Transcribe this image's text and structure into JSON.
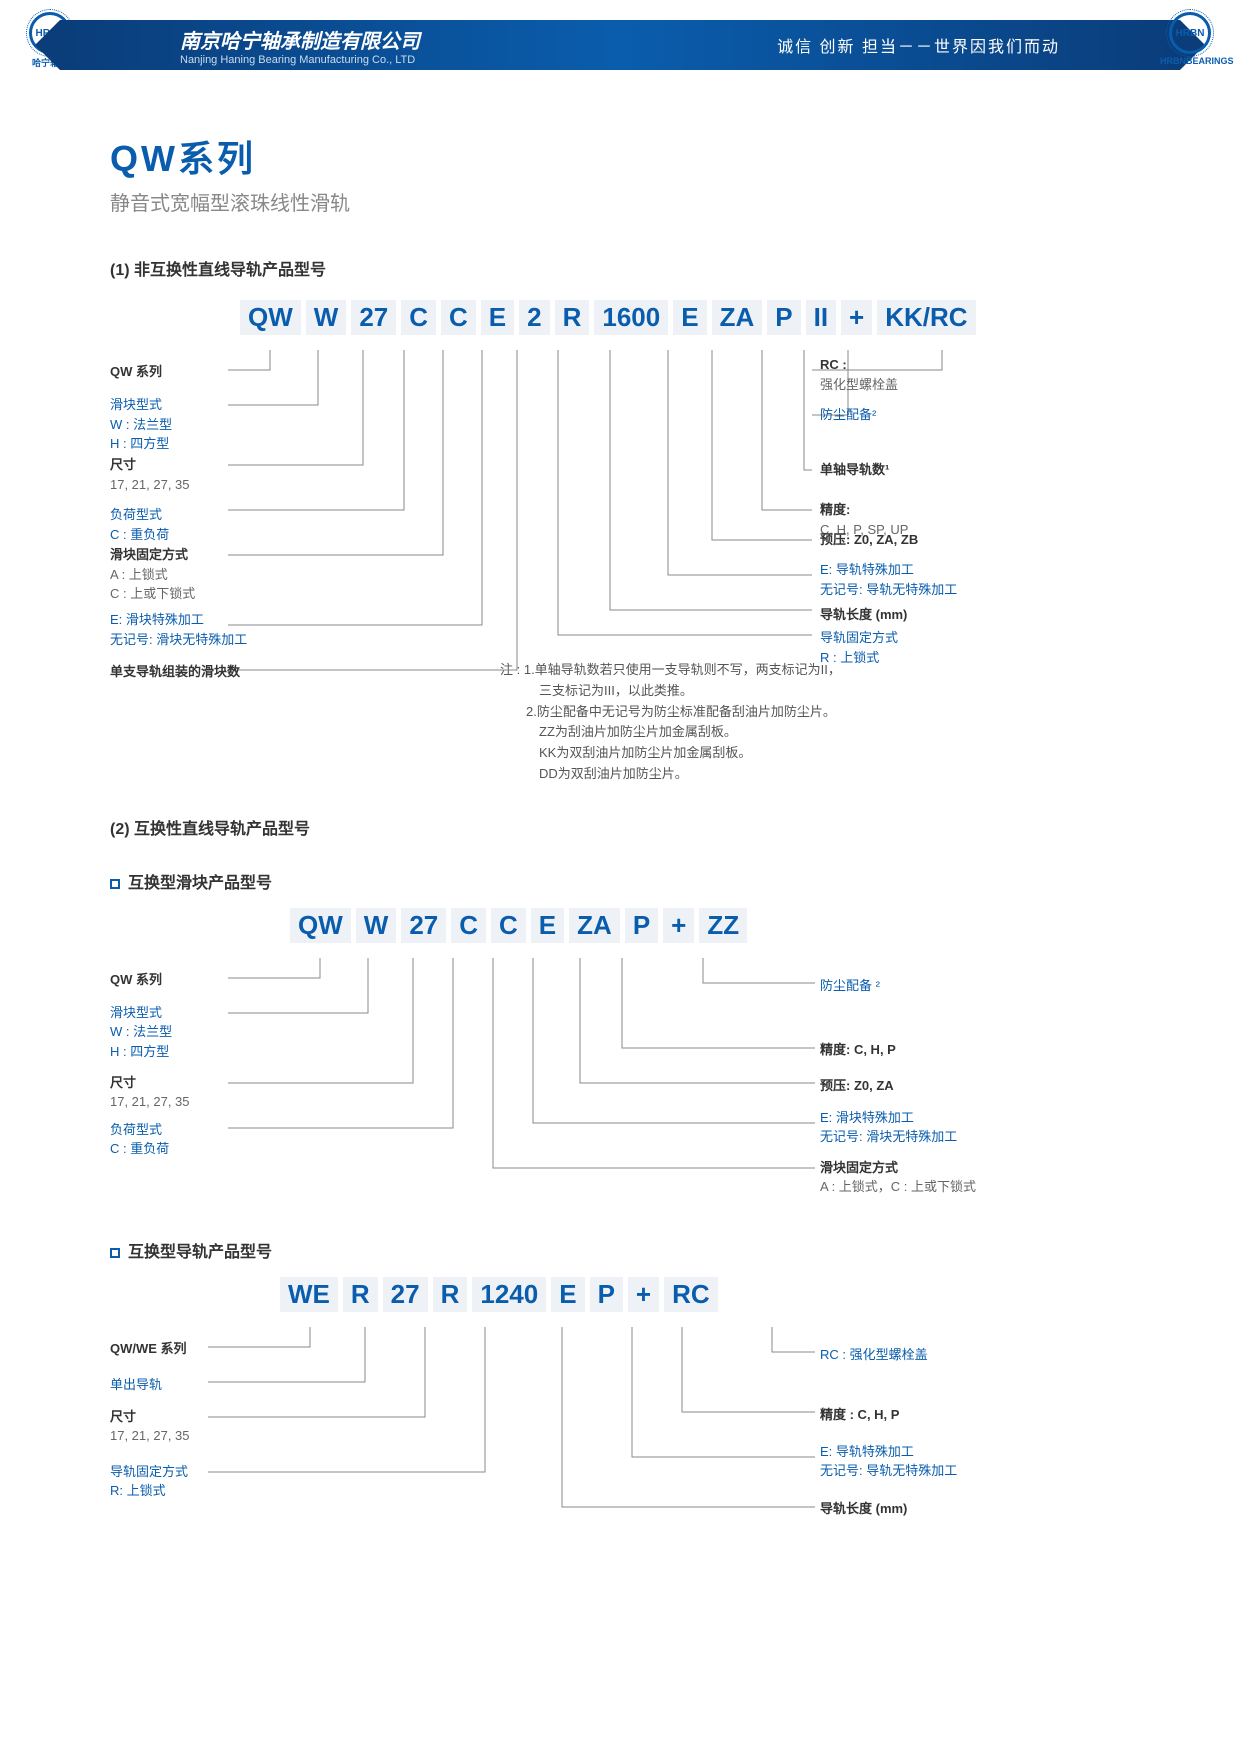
{
  "header": {
    "logo": "HRBN",
    "logo_sub_l": "哈宁轴承",
    "logo_sub_r": "HRBNBEARINGS",
    "company_cn": "南京哈宁轴承制造有限公司",
    "company_en": "Nanjing Haning Bearing Manufacturing Co., LTD",
    "slogan": "诚信 创新 担当－－世界因我们而动"
  },
  "title": "QW系列",
  "subtitle": "静音式宽幅型滚珠线性滑轨",
  "s1": {
    "heading": "(1) 非互换性直线导轨产品型号",
    "codes": [
      "QW",
      "W",
      "27",
      "C",
      "C",
      "E",
      "2",
      "R",
      "1600",
      "E",
      "ZA",
      "P",
      "II",
      "+",
      "KK/RC"
    ],
    "left": [
      {
        "t": "QW 系列"
      },
      {
        "b": "滑块型式\nW : 法兰型\nH : 四方型"
      },
      {
        "t": "尺寸",
        "g": "17, 21, 27, 35"
      },
      {
        "b": "负荷型式\nC : 重负荷"
      },
      {
        "t": "滑块固定方式",
        "g": "A : 上锁式\nC : 上或下锁式"
      },
      {
        "b": "E: 滑块特殊加工\n无记号: 滑块无特殊加工"
      },
      {
        "t": "单支导轨组装的滑块数"
      }
    ],
    "right": [
      {
        "t": "RC :",
        "g": "强化型螺栓盖"
      },
      {
        "b": "防尘配备²"
      },
      {
        "t": "单轴导轨数¹"
      },
      {
        "t": "精度:",
        "g": "C, H, P, SP, UP"
      },
      {
        "t": "预压: Z0, ZA, ZB"
      },
      {
        "b": "E: 导轨特殊加工\n无记号: 导轨无特殊加工"
      },
      {
        "t": "导轨长度 (mm)"
      },
      {
        "b": "导轨固定方式\nR : 上锁式"
      }
    ],
    "notes": "注 : 1.单轴导轨数若只使用一支导轨则不写，两支标记为II，\n　　　三支标记为III，以此类推。\n　　2.防尘配备中无记号为防尘标准配备刮油片加防尘片。\n　　　ZZ为刮油片加防尘片加金属刮板。\n　　　KK为双刮油片加防尘片加金属刮板。\n　　　DD为双刮油片加防尘片。"
  },
  "s2": {
    "heading": "(2) 互换性直线导轨产品型号",
    "sub1": "互换型滑块产品型号",
    "codes1": [
      "QW",
      "W",
      "27",
      "C",
      "C",
      "E",
      "ZA",
      "P",
      "+",
      "ZZ"
    ],
    "l1": [
      {
        "t": "QW 系列"
      },
      {
        "b": "滑块型式\nW : 法兰型\nH : 四方型"
      },
      {
        "t": "尺寸",
        "g": "17, 21, 27, 35"
      },
      {
        "b": "负荷型式\nC : 重负荷"
      }
    ],
    "r1": [
      {
        "b": "防尘配备 ²"
      },
      {
        "t": "精度:  C, H, P"
      },
      {
        "t": "预压:  Z0, ZA"
      },
      {
        "b": "E: 滑块特殊加工\n无记号: 滑块无特殊加工"
      },
      {
        "t": "滑块固定方式",
        "g": "A : 上锁式，C : 上或下锁式"
      }
    ],
    "sub2": "互换型导轨产品型号",
    "codes2": [
      "WE",
      "R",
      "27",
      "R",
      "1240",
      "E",
      "P",
      "+",
      "RC"
    ],
    "l2": [
      {
        "t": "QW/WE 系列"
      },
      {
        "b": "单出导轨"
      },
      {
        "t": "尺寸",
        "g": "17, 21, 27, 35"
      },
      {
        "b": "导轨固定方式\nR: 上锁式"
      }
    ],
    "r2": [
      {
        "b": "RC : 强化型螺栓盖"
      },
      {
        "t": "精度 : C, H, P"
      },
      {
        "b": "E: 导轨特殊加工\n无记号: 导轨无特殊加工"
      },
      {
        "t": "导轨长度 (mm)"
      }
    ]
  },
  "colors": {
    "blue": "#0a5dad",
    "lightbg": "#eef2f6",
    "line": "#888"
  }
}
